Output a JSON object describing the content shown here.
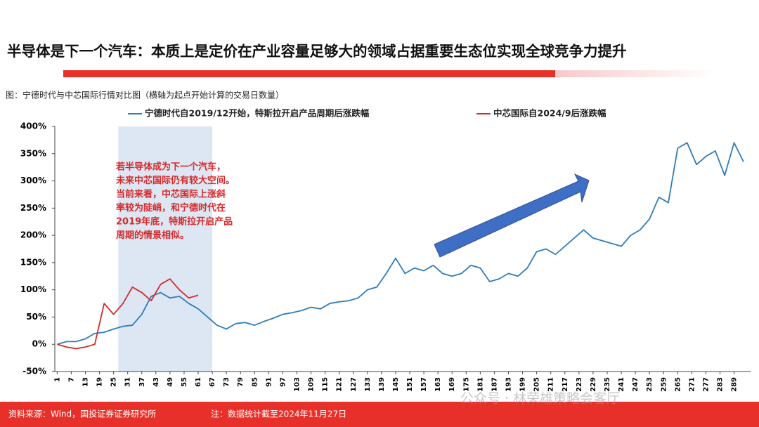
{
  "header": {
    "title": "半导体是下一个汽车：本质上是定价在产业容量足够大的领域占据重要生态位实现全球竞争力提升"
  },
  "chart_data": {
    "type": "line",
    "caption": "图：宁德时代与中芯国际行情对比图（横轴为起点开始计算的交易日数量）",
    "xlim": [
      0,
      296
    ],
    "xticks": [
      1,
      7,
      13,
      19,
      25,
      31,
      37,
      43,
      49,
      55,
      61,
      67,
      73,
      79,
      85,
      91,
      97,
      103,
      109,
      115,
      121,
      127,
      133,
      139,
      145,
      151,
      157,
      163,
      169,
      175,
      181,
      187,
      193,
      199,
      205,
      211,
      217,
      223,
      229,
      235,
      241,
      247,
      253,
      259,
      265,
      271,
      277,
      283,
      289
    ],
    "ylim": [
      -50,
      400
    ],
    "yticks": [
      {
        "value": -50,
        "label": "-50%"
      },
      {
        "value": 0,
        "label": "0%"
      },
      {
        "value": 50,
        "label": "50%"
      },
      {
        "value": 100,
        "label": "100%"
      },
      {
        "value": 150,
        "label": "150%"
      },
      {
        "value": 200,
        "label": "200%"
      },
      {
        "value": 250,
        "label": "250%"
      },
      {
        "value": 300,
        "label": "300%"
      },
      {
        "value": 350,
        "label": "350%"
      },
      {
        "value": 400,
        "label": "400%"
      }
    ],
    "highlight_x": [
      27,
      67
    ],
    "annotation": [
      "若半导体成为下一个汽车，",
      "未来中芯国际仍有较大空间。",
      "当前来看，中芯国际上涨斜",
      "率较为陡峭，和宁德时代在",
      "2019年底，特斯拉开启产品",
      "周期的情景相似。"
    ],
    "series": [
      {
        "name": "宁德时代自2019/12开始，特斯拉开启产品周期后涨跌幅",
        "color": "#2e7cb8",
        "x": [
          1,
          5,
          9,
          13,
          17,
          21,
          25,
          29,
          33,
          37,
          41,
          45,
          49,
          53,
          57,
          61,
          65,
          69,
          73,
          77,
          81,
          85,
          89,
          93,
          97,
          101,
          105,
          109,
          113,
          117,
          121,
          125,
          129,
          133,
          137,
          141,
          145,
          149,
          153,
          157,
          161,
          165,
          169,
          173,
          177,
          181,
          185,
          189,
          193,
          197,
          201,
          205,
          209,
          213,
          217,
          221,
          225,
          229,
          233,
          237,
          241,
          245,
          249,
          253,
          257,
          261,
          265,
          269,
          273,
          277,
          281,
          285,
          289,
          293
        ],
        "values": [
          0,
          5,
          5,
          10,
          20,
          22,
          28,
          33,
          35,
          55,
          88,
          95,
          85,
          88,
          75,
          65,
          50,
          35,
          28,
          38,
          40,
          35,
          42,
          48,
          55,
          58,
          62,
          68,
          65,
          75,
          78,
          80,
          85,
          100,
          105,
          130,
          158,
          130,
          140,
          135,
          145,
          130,
          125,
          130,
          145,
          140,
          115,
          120,
          130,
          125,
          140,
          170,
          175,
          165,
          180,
          195,
          210,
          195,
          190,
          185,
          180,
          200,
          210,
          230,
          270,
          260,
          360,
          370,
          330,
          345,
          355,
          310,
          370,
          335
        ]
      },
      {
        "name": "中芯国际自2024/9后涨跌幅",
        "color": "#d62a2a",
        "x": [
          1,
          5,
          9,
          13,
          17,
          21,
          25,
          29,
          33,
          37,
          41,
          45,
          49,
          53,
          57,
          61
        ],
        "values": [
          0,
          -5,
          -8,
          -5,
          0,
          75,
          55,
          75,
          105,
          95,
          80,
          110,
          120,
          100,
          85,
          90
        ]
      }
    ]
  },
  "footer": {
    "source": "资料来源：Wind，国投证券证券研究所",
    "note": "注：数据统计截至2024年11月27日",
    "watermark": "公众号 · 林荣雄策略会客厅"
  }
}
